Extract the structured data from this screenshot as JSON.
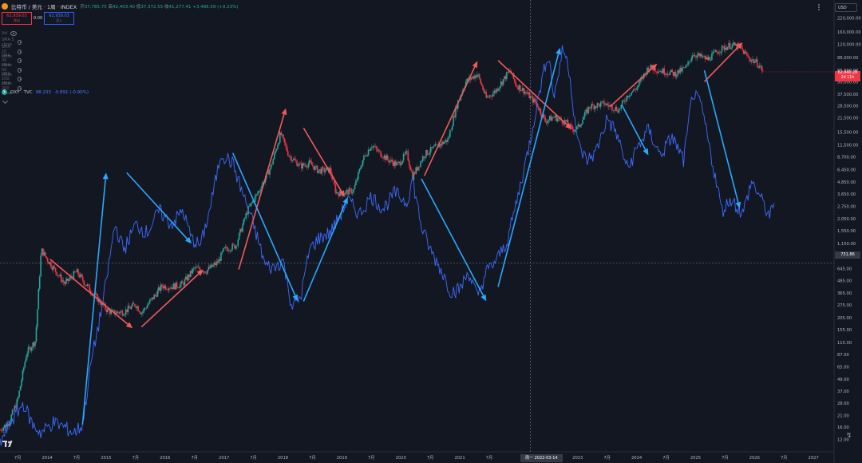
{
  "header": {
    "symbol_title": "比特币 / 美元 · 1周 · INDEX",
    "ohlc": [
      {
        "k": "开",
        "v": "37,785.75"
      },
      {
        "k": "高",
        "v": "42,403.40"
      },
      {
        "k": "低",
        "v": "37,372.55"
      },
      {
        "k": "收",
        "v": "41,277.41"
      }
    ],
    "change": "+3,486.59 (+9.23%)",
    "sell_price": "62,939.03",
    "sell_label": "卖出",
    "buy_price": "62,939.03",
    "buy_label": "买入",
    "spread": "0.00"
  },
  "indicators": [
    {
      "label": "Vol"
    },
    {
      "label": "SMA 5 close"
    },
    {
      "label": "SMA 10 close"
    },
    {
      "label": "SMA 30 close"
    },
    {
      "label": "SMA 50 close"
    },
    {
      "label": "SMA 100 close"
    },
    {
      "label": "SMA 200 close"
    }
  ],
  "compare": {
    "symbol": "DXY · TVC",
    "value": "98.233",
    "change": "-0.891 (-0.90%)"
  },
  "currency_label": "USD",
  "last_price": {
    "price": "62,940.28",
    "countdown": "2d 11h"
  },
  "crosshair": {
    "price": "731.86",
    "date": "周一 2022-03-14"
  },
  "colors": {
    "background": "#131722",
    "up": "#26a69a",
    "down": "#f23645",
    "dxy_line": "#3d6bff",
    "arrow_red": "#f05a5a",
    "arrow_blue": "#29a8ff",
    "grid": "#1e2230"
  },
  "chart_data": {
    "type": "line",
    "yscale": "log",
    "ylim": [
      9,
      300000
    ],
    "xlim": [
      2013.2,
      2027.35
    ],
    "grid": false,
    "y_ticks": [
      "220,000.00",
      "160,000.00",
      "120,000.00",
      "88,000.00",
      "65,000.00",
      "50,000.00",
      "37,500.00",
      "28,500.00",
      "21,500.00",
      "15,500.00",
      "11,500.00",
      "8,700.00",
      "6,450.00",
      "4,850.00",
      "3,650.00",
      "2,750.00",
      "2,050.00",
      "1,550.00",
      "1,150.00",
      "870.00",
      "645.00",
      "485.00",
      "365.00",
      "275.00",
      "205.00",
      "155.00",
      "115.00",
      "87.00",
      "65.00",
      "49.00",
      "37.00",
      "28.00",
      "21.00",
      "16.00",
      "12.00"
    ],
    "y_tick_values": [
      220000,
      160000,
      120000,
      88000,
      65000,
      50000,
      37500,
      28500,
      21500,
      15500,
      11500,
      8700,
      6450,
      4850,
      3650,
      2750,
      2050,
      1550,
      1150,
      870,
      645,
      485,
      365,
      275,
      205,
      155,
      115,
      87,
      65,
      49,
      37,
      28,
      21,
      16,
      12
    ],
    "x_ticks": [
      {
        "label": "7月",
        "x": 2013.5
      },
      {
        "label": "2014",
        "x": 2014.0
      },
      {
        "label": "7月",
        "x": 2014.5
      },
      {
        "label": "2015",
        "x": 2015.0
      },
      {
        "label": "7月",
        "x": 2015.5
      },
      {
        "label": "2016",
        "x": 2016.0
      },
      {
        "label": "7月",
        "x": 2016.5
      },
      {
        "label": "2017",
        "x": 2017.0
      },
      {
        "label": "7月",
        "x": 2017.5
      },
      {
        "label": "2018",
        "x": 2018.0
      },
      {
        "label": "7月",
        "x": 2018.5
      },
      {
        "label": "2019",
        "x": 2019.0
      },
      {
        "label": "7月",
        "x": 2019.5
      },
      {
        "label": "2020",
        "x": 2020.0
      },
      {
        "label": "7月",
        "x": 2020.5
      },
      {
        "label": "2021",
        "x": 2021.0
      },
      {
        "label": "7月",
        "x": 2021.5
      },
      {
        "label": "2023",
        "x": 2023.0
      },
      {
        "label": "7月",
        "x": 2023.5
      },
      {
        "label": "2024",
        "x": 2024.0
      },
      {
        "label": "7月",
        "x": 2024.5
      },
      {
        "label": "2025",
        "x": 2025.0
      },
      {
        "label": "7月",
        "x": 2025.5
      },
      {
        "label": "2026",
        "x": 2026.0
      },
      {
        "label": "7月",
        "x": 2026.5
      },
      {
        "label": "2027",
        "x": 2027.0
      },
      {
        "label": "7月",
        "x": 2027.5
      }
    ],
    "series": [
      {
        "kind": "candles",
        "points": [
          [
            2013.2,
            15
          ],
          [
            2013.35,
            18
          ],
          [
            2013.5,
            30
          ],
          [
            2013.65,
            90
          ],
          [
            2013.8,
            120
          ],
          [
            2013.9,
            1000
          ],
          [
            2014.0,
            800
          ],
          [
            2014.15,
            600
          ],
          [
            2014.3,
            450
          ],
          [
            2014.5,
            600
          ],
          [
            2014.65,
            450
          ],
          [
            2014.8,
            350
          ],
          [
            2015.0,
            250
          ],
          [
            2015.1,
            230
          ],
          [
            2015.3,
            235
          ],
          [
            2015.5,
            280
          ],
          [
            2015.6,
            230
          ],
          [
            2015.75,
            300
          ],
          [
            2015.95,
            430
          ],
          [
            2016.1,
            420
          ],
          [
            2016.3,
            450
          ],
          [
            2016.5,
            650
          ],
          [
            2016.7,
            610
          ],
          [
            2016.9,
            750
          ],
          [
            2017.0,
            1000
          ],
          [
            2017.2,
            1100
          ],
          [
            2017.4,
            2500
          ],
          [
            2017.6,
            4000
          ],
          [
            2017.8,
            7000
          ],
          [
            2017.96,
            15000
          ],
          [
            2018.1,
            9000
          ],
          [
            2018.3,
            7000
          ],
          [
            2018.45,
            7500
          ],
          [
            2018.6,
            6300
          ],
          [
            2018.8,
            6400
          ],
          [
            2018.9,
            3800
          ],
          [
            2019.0,
            3700
          ],
          [
            2019.2,
            4000
          ],
          [
            2019.35,
            8000
          ],
          [
            2019.5,
            11500
          ],
          [
            2019.6,
            10000
          ],
          [
            2019.8,
            8000
          ],
          [
            2019.95,
            7200
          ],
          [
            2020.1,
            9500
          ],
          [
            2020.2,
            5500
          ],
          [
            2020.4,
            9200
          ],
          [
            2020.6,
            11000
          ],
          [
            2020.8,
            13000
          ],
          [
            2020.95,
            29000
          ],
          [
            2021.1,
            50000
          ],
          [
            2021.3,
            60000
          ],
          [
            2021.45,
            34000
          ],
          [
            2021.6,
            40000
          ],
          [
            2021.85,
            65000
          ],
          [
            2021.95,
            47000
          ],
          [
            2022.1,
            40000
          ],
          [
            2022.3,
            30000
          ],
          [
            2022.45,
            20000
          ],
          [
            2022.6,
            22000
          ],
          [
            2022.8,
            19500
          ],
          [
            2022.9,
            16500
          ],
          [
            2023.0,
            17000
          ],
          [
            2023.2,
            28000
          ],
          [
            2023.45,
            30000
          ],
          [
            2023.7,
            26000
          ],
          [
            2023.85,
            37000
          ],
          [
            2024.0,
            43000
          ],
          [
            2024.2,
            70000
          ],
          [
            2024.45,
            64000
          ],
          [
            2024.65,
            60000
          ],
          [
            2024.85,
            70000
          ],
          [
            2024.95,
            96000
          ],
          [
            2025.2,
            84000
          ],
          [
            2025.4,
            105000
          ],
          [
            2025.6,
            118000
          ],
          [
            2025.75,
            112000
          ],
          [
            2025.9,
            87000
          ],
          [
            2026.05,
            77000
          ],
          [
            2026.15,
            63000
          ]
        ]
      },
      {
        "name": "DXY · TVC",
        "kind": "line",
        "points": [
          [
            2013.2,
            11
          ],
          [
            2013.4,
            19
          ],
          [
            2013.6,
            28
          ],
          [
            2013.75,
            17
          ],
          [
            2013.9,
            14
          ],
          [
            2014.1,
            18
          ],
          [
            2014.3,
            16
          ],
          [
            2014.45,
            14
          ],
          [
            2014.6,
            17
          ],
          [
            2014.75,
            75
          ],
          [
            2014.95,
            300
          ],
          [
            2015.15,
            1800
          ],
          [
            2015.3,
            1000
          ],
          [
            2015.5,
            1800
          ],
          [
            2015.7,
            1500
          ],
          [
            2015.9,
            2500
          ],
          [
            2016.1,
            1800
          ],
          [
            2016.3,
            2500
          ],
          [
            2016.45,
            1300
          ],
          [
            2016.6,
            1100
          ],
          [
            2016.75,
            2400
          ],
          [
            2016.95,
            9500
          ],
          [
            2017.15,
            7500
          ],
          [
            2017.3,
            4000
          ],
          [
            2017.5,
            1800
          ],
          [
            2017.7,
            700
          ],
          [
            2017.85,
            650
          ],
          [
            2018.0,
            800
          ],
          [
            2018.15,
            270
          ],
          [
            2018.3,
            330
          ],
          [
            2018.45,
            1000
          ],
          [
            2018.6,
            1300
          ],
          [
            2018.8,
            1500
          ],
          [
            2018.95,
            2100
          ],
          [
            2019.1,
            3200
          ],
          [
            2019.3,
            2300
          ],
          [
            2019.5,
            3500
          ],
          [
            2019.7,
            2600
          ],
          [
            2019.9,
            3800
          ],
          [
            2020.1,
            3000
          ],
          [
            2020.2,
            5200
          ],
          [
            2020.35,
            1700
          ],
          [
            2020.5,
            1000
          ],
          [
            2020.7,
            600
          ],
          [
            2020.85,
            380
          ],
          [
            2021.0,
            400
          ],
          [
            2021.15,
            600
          ],
          [
            2021.3,
            330
          ],
          [
            2021.45,
            600
          ],
          [
            2021.6,
            750
          ],
          [
            2021.8,
            1200
          ],
          [
            2021.95,
            2800
          ],
          [
            2022.15,
            9500
          ],
          [
            2022.35,
            40000
          ],
          [
            2022.5,
            100000
          ],
          [
            2022.6,
            35000
          ],
          [
            2022.75,
            110000
          ],
          [
            2022.85,
            70000
          ],
          [
            2023.0,
            12000
          ],
          [
            2023.15,
            8000
          ],
          [
            2023.3,
            9500
          ],
          [
            2023.5,
            21500
          ],
          [
            2023.65,
            15500
          ],
          [
            2023.85,
            6500
          ],
          [
            2024.0,
            10500
          ],
          [
            2024.2,
            16500
          ],
          [
            2024.4,
            9000
          ],
          [
            2024.6,
            14000
          ],
          [
            2024.8,
            8000
          ],
          [
            2024.95,
            39000
          ],
          [
            2025.1,
            28500
          ],
          [
            2025.3,
            7000
          ],
          [
            2025.45,
            2500
          ],
          [
            2025.6,
            3300
          ],
          [
            2025.8,
            2300
          ],
          [
            2025.95,
            4900
          ],
          [
            2026.1,
            3400
          ],
          [
            2026.25,
            2200
          ],
          [
            2026.35,
            2800
          ]
        ]
      },
      {
        "name": "trend-arrows-red",
        "kind": "arrows",
        "points": [
          [
            [
              2014.05,
              800
            ],
            [
              2015.45,
              160
            ]
          ],
          [
            [
              2015.6,
              165
            ],
            [
              2016.65,
              630
            ]
          ],
          [
            [
              2017.25,
              630
            ],
            [
              2018.05,
              27000
            ]
          ],
          [
            [
              2018.35,
              17000
            ],
            [
              2019.05,
              3400
            ]
          ],
          [
            [
              2020.4,
              5600
            ],
            [
              2021.3,
              81000
            ]
          ],
          [
            [
              2021.65,
              82000
            ],
            [
              2022.9,
              16500
            ]
          ],
          [
            [
              2023.55,
              28000
            ],
            [
              2024.35,
              76000
            ]
          ],
          [
            [
              2025.15,
              50000
            ],
            [
              2025.8,
              125000
            ]
          ]
        ]
      },
      {
        "name": "trend-arrows-blue",
        "kind": "arrows",
        "points": [
          [
            [
              2014.6,
              17
            ],
            [
              2015.0,
              6000
            ]
          ],
          [
            [
              2015.35,
              6000
            ],
            [
              2016.45,
              1150
            ]
          ],
          [
            [
              2017.15,
              9500
            ],
            [
              2018.25,
              300
            ]
          ],
          [
            [
              2018.35,
              300
            ],
            [
              2019.1,
              3400
            ]
          ],
          [
            [
              2020.35,
              5200
            ],
            [
              2021.45,
              300
            ]
          ],
          [
            [
              2021.65,
              420
            ],
            [
              2022.7,
              110000
            ]
          ],
          [
            [
              2023.75,
              29000
            ],
            [
              2024.2,
              9000
            ]
          ],
          [
            [
              2025.15,
              65000
            ],
            [
              2025.75,
              2600
            ]
          ]
        ]
      }
    ]
  }
}
